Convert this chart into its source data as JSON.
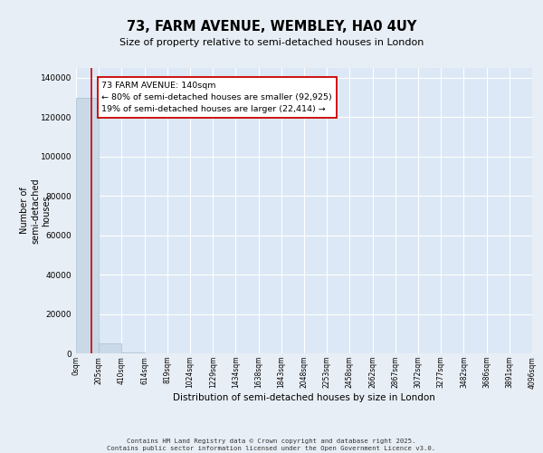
{
  "title": "73, FARM AVENUE, WEMBLEY, HA0 4UY",
  "subtitle": "Size of property relative to semi-detached houses in London",
  "xlabel": "Distribution of semi-detached houses by size in London",
  "ylabel": "Number of\nsemi-detached\nhouses",
  "annotation_text_line1": "73 FARM AVENUE: 140sqm",
  "annotation_text_line2": "← 80% of semi-detached houses are smaller (92,925)",
  "annotation_text_line3": "19% of semi-detached houses are larger (22,414) →",
  "bar_edges": [
    0,
    205,
    410,
    614,
    819,
    1024,
    1229,
    1434,
    1638,
    1843,
    2048,
    2253,
    2458,
    2662,
    2867,
    3072,
    3277,
    3482,
    3686,
    3891,
    4096
  ],
  "bar_heights": [
    130000,
    5200,
    400,
    150,
    80,
    50,
    30,
    20,
    15,
    10,
    8,
    6,
    5,
    4,
    3,
    3,
    2,
    2,
    1,
    1
  ],
  "bar_color": "#c9d9e8",
  "bar_edgecolor": "#a8bfcf",
  "redline_x": 140,
  "ylim": [
    0,
    145000
  ],
  "yticks": [
    0,
    20000,
    40000,
    60000,
    80000,
    100000,
    120000,
    140000
  ],
  "background_color": "#e8eef5",
  "plot_background": "#dce8f5",
  "grid_color": "#ffffff",
  "redline_color": "#cc0000",
  "annotation_box_edgecolor": "#cc0000",
  "footer_line1": "Contains HM Land Registry data © Crown copyright and database right 2025.",
  "footer_line2": "Contains public sector information licensed under the Open Government Licence v3.0."
}
